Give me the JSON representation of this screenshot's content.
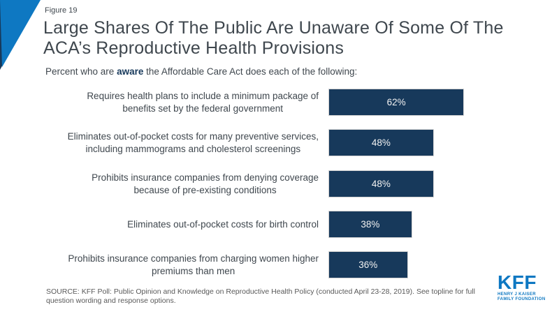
{
  "figure_label": "Figure 19",
  "title": {
    "line1": "Large Shares Of The Public Are Unaware Of Some Of The",
    "line2": "ACA’s Reproductive Health Provisions"
  },
  "subtitle": {
    "prefix": "Percent who are ",
    "emphasis": "aware",
    "suffix": " the Affordable Care Act does each of the following:"
  },
  "chart_data": {
    "type": "bar",
    "orientation": "horizontal",
    "xlim": [
      0,
      100
    ],
    "grid": false,
    "legend": false,
    "bar_color": "#17395B",
    "data_label_position": "inside-center",
    "categories": [
      "Requires health plans to include a minimum package of benefits set by the federal government",
      "Eliminates out-of-pocket costs for many preventive services, including mammograms and cholesterol screenings",
      "Prohibits insurance companies from denying coverage because of pre-existing conditions",
      "Eliminates out-of-pocket costs for birth control",
      "Prohibits insurance companies from charging women higher premiums than men"
    ],
    "rows": [
      {
        "label": "Requires health plans to include a minimum package of\nbenefits set by the federal government",
        "value": 62,
        "value_label": "62%"
      },
      {
        "label": "Eliminates out-of-pocket costs for many preventive services,\nincluding mammograms and cholesterol screenings",
        "value": 48,
        "value_label": "48%"
      },
      {
        "label": "Prohibits insurance companies from denying coverage\nbecause of pre-existing conditions",
        "value": 48,
        "value_label": "48%"
      },
      {
        "label": "Eliminates out-of-pocket costs for birth control",
        "value": 38,
        "value_label": "38%"
      },
      {
        "label": "Prohibits insurance companies from charging women higher\npremiums than men",
        "value": 36,
        "value_label": "36%"
      }
    ]
  },
  "source": "SOURCE: KFF Poll: Public Opinion and Knowledge on Reproductive Health Policy (conducted April 23-28, 2019). See topline for full\nquestion wording and response options.",
  "logo": {
    "main": "KFF",
    "sub_line1": "HENRY J KAISER",
    "sub_line2": "FAMILY FOUNDATION"
  },
  "colors": {
    "brand_blue": "#0E78C2",
    "navy": "#17395B",
    "title_gray": "#3F474E",
    "source_gray": "#595959"
  }
}
